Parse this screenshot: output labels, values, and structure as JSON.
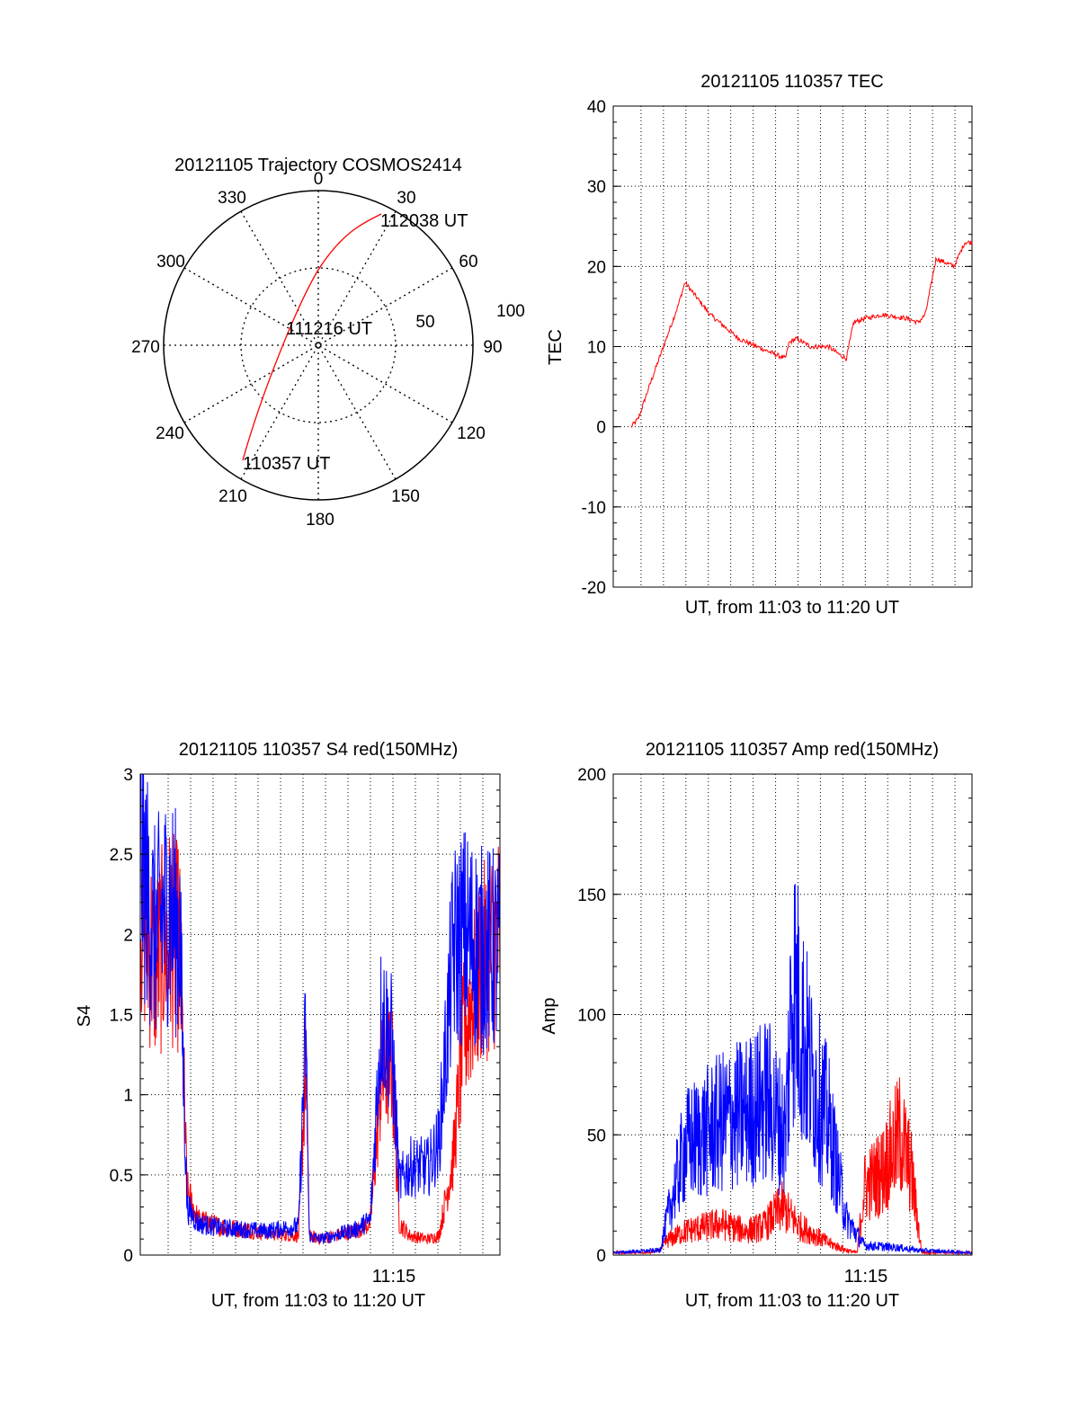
{
  "colors": {
    "red": "#ff0000",
    "blue": "#0000ff",
    "axis": "#000000",
    "grid": "#000000"
  },
  "chart_data": [
    {
      "id": "polar",
      "type": "polar-trajectory",
      "title": "20121105 Trajectory COSMOS2414",
      "azimuth_labels": [
        "0",
        "30",
        "60",
        "90",
        "120",
        "150",
        "180",
        "210",
        "240",
        "270",
        "300",
        "330"
      ],
      "elevation_ring_labels": [
        "50",
        "100"
      ],
      "grid": true,
      "series": [
        {
          "color": "red",
          "points": [
            [
              218,
              7
            ],
            [
              225,
              30
            ],
            [
              240,
              60
            ],
            [
              270,
              90
            ],
            [
              20,
              55
            ],
            [
              30,
              25
            ],
            [
              34,
              5
            ]
          ]
        }
      ],
      "annotations": [
        {
          "text": "112038 UT"
        },
        {
          "text": "111216 UT"
        },
        {
          "text": "110357 UT"
        }
      ]
    },
    {
      "id": "tec",
      "type": "line",
      "title": "20121105 110357 TEC",
      "xlabel": "UT, from 11:03 to 11:20 UT",
      "ylabel": "TEC",
      "xlim": [
        0,
        1
      ],
      "ylim": [
        -20,
        40
      ],
      "yticks": [
        -20,
        -10,
        0,
        10,
        20,
        30,
        40
      ],
      "xticks": [],
      "grid": true,
      "series": [
        {
          "color": "red",
          "x": [
            0.05,
            0.07,
            0.1,
            0.14,
            0.18,
            0.2,
            0.27,
            0.35,
            0.4,
            0.48,
            0.49,
            0.51,
            0.55,
            0.6,
            0.63,
            0.65,
            0.67,
            0.7,
            0.75,
            0.82,
            0.85,
            0.87,
            0.9,
            0.95,
            0.98,
            1.0
          ],
          "y": [
            0,
            1,
            5,
            10,
            15,
            18,
            14,
            11,
            10,
            8.5,
            10.5,
            11,
            10,
            10,
            9,
            8.5,
            13,
            13.5,
            14,
            13.5,
            13,
            14,
            21,
            20,
            23,
            23
          ]
        }
      ]
    },
    {
      "id": "s4",
      "type": "line",
      "title": "20121105 110357 S4 red(150MHz)",
      "xlabel": "UT, from 11:03 to 11:20 UT",
      "ylabel": "S4",
      "xlim": [
        0,
        1
      ],
      "ylim": [
        0,
        3
      ],
      "yticks": [
        0,
        0.5,
        1,
        1.5,
        2,
        2.5,
        3
      ],
      "yticklabels": [
        "0",
        "0.5",
        "1",
        "1.5",
        "2",
        "2.5",
        "3"
      ],
      "xtick_label": "11:15",
      "grid": true,
      "series": [
        {
          "color": "red",
          "x": [
            0.0,
            0.04,
            0.08,
            0.11,
            0.13,
            0.16,
            0.22,
            0.35,
            0.44,
            0.46,
            0.47,
            0.5,
            0.6,
            0.64,
            0.67,
            0.7,
            0.72,
            0.75,
            0.8,
            0.83,
            0.87,
            0.9,
            0.95,
            1.0
          ],
          "y": [
            2.2,
            1.8,
            2.0,
            1.9,
            0.4,
            0.22,
            0.18,
            0.14,
            0.12,
            1.2,
            0.12,
            0.1,
            0.15,
            0.2,
            1.1,
            1.2,
            0.2,
            0.12,
            0.1,
            0.12,
            0.6,
            1.4,
            1.8,
            2.0
          ]
        },
        {
          "color": "blue",
          "x": [
            0.0,
            0.04,
            0.08,
            0.11,
            0.13,
            0.16,
            0.22,
            0.35,
            0.44,
            0.46,
            0.47,
            0.5,
            0.6,
            0.64,
            0.67,
            0.7,
            0.72,
            0.75,
            0.8,
            0.83,
            0.87,
            0.9,
            0.95,
            1.0
          ],
          "y": [
            2.5,
            2.0,
            2.2,
            2.0,
            0.3,
            0.2,
            0.17,
            0.15,
            0.18,
            1.4,
            0.12,
            0.1,
            0.16,
            0.22,
            1.5,
            1.3,
            0.45,
            0.55,
            0.55,
            0.7,
            1.9,
            2.0,
            1.9,
            1.9
          ]
        }
      ]
    },
    {
      "id": "amp",
      "type": "line",
      "title": "20121105 110357 Amp red(150MHz)",
      "xlabel": "UT, from 11:03 to 11:20 UT",
      "ylabel": "Amp",
      "xlim": [
        0,
        1
      ],
      "ylim": [
        0,
        200
      ],
      "yticks": [
        0,
        50,
        100,
        150,
        200
      ],
      "xtick_label": "11:15",
      "grid": true,
      "series": [
        {
          "color": "red",
          "x": [
            0.0,
            0.1,
            0.13,
            0.15,
            0.2,
            0.3,
            0.37,
            0.42,
            0.47,
            0.52,
            0.6,
            0.65,
            0.68,
            0.7,
            0.75,
            0.8,
            0.83,
            0.86,
            1.0
          ],
          "y": [
            1,
            1,
            2,
            6,
            10,
            13,
            10,
            12,
            20,
            12,
            5,
            2,
            1,
            28,
            35,
            50,
            35,
            1,
            1
          ]
        },
        {
          "color": "blue",
          "x": [
            0.0,
            0.13,
            0.15,
            0.2,
            0.25,
            0.3,
            0.38,
            0.43,
            0.48,
            0.5,
            0.55,
            0.6,
            0.65,
            0.7,
            0.8,
            0.85,
            1.0
          ],
          "y": [
            1,
            2,
            15,
            45,
            50,
            55,
            60,
            65,
            50,
            115,
            75,
            55,
            15,
            4,
            3,
            2,
            1
          ]
        }
      ]
    }
  ]
}
